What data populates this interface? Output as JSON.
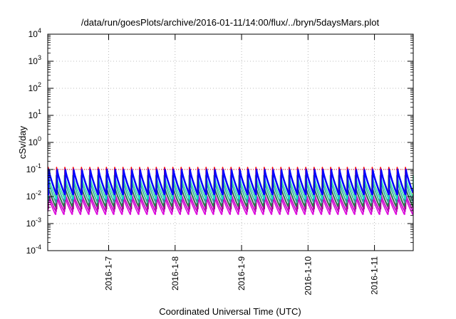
{
  "chart_data": {
    "type": "line",
    "title": "/data/run/goesPlots/archive/2016-01-11/14:00/flux/../bryn/5daysMars.plot",
    "xlabel": "Coordinated Universal Time (UTC)",
    "ylabel": "cSv/day",
    "yscale": "log",
    "ylim": [
      0.0001,
      10000
    ],
    "xlim": [
      "2016-01-06 02:00",
      "2016-01-11 14:00"
    ],
    "grid": true,
    "x_ticks": [
      "2016-1-7",
      "2016-1-8",
      "2016-1-9",
      "2016-1-10",
      "2016-1-11"
    ],
    "y_ticks": [
      {
        "base": "10",
        "exp": "-4"
      },
      {
        "base": "10",
        "exp": "-3"
      },
      {
        "base": "10",
        "exp": "-2"
      },
      {
        "base": "10",
        "exp": "-1"
      },
      {
        "base": "10",
        "exp": "0"
      },
      {
        "base": "10",
        "exp": "1"
      },
      {
        "base": "10",
        "exp": "2"
      },
      {
        "base": "10",
        "exp": "3"
      },
      {
        "base": "10",
        "exp": "4"
      }
    ],
    "reference_level": 0.1,
    "cycle_hours": 3,
    "series": [
      {
        "color": "#dd00dd",
        "peak": 0.012,
        "trough": 0.0022
      },
      {
        "color": "#c000c0",
        "peak": 0.014,
        "trough": 0.0028
      },
      {
        "color": "#a00090",
        "peak": 0.02,
        "trough": 0.0035
      },
      {
        "color": "#208040",
        "peak": 0.028,
        "trough": 0.0045
      },
      {
        "color": "#30a0a0",
        "peak": 0.04,
        "trough": 0.006
      },
      {
        "color": "#00dddd",
        "peak": 0.05,
        "trough": 0.008
      },
      {
        "color": "#40e0a0",
        "peak": 0.06,
        "trough": 0.01
      },
      {
        "color": "#ff0000",
        "peak": 0.12,
        "trough": 0.013
      },
      {
        "color": "#0000ff",
        "peak": 0.1,
        "trough": 0.012
      }
    ]
  }
}
